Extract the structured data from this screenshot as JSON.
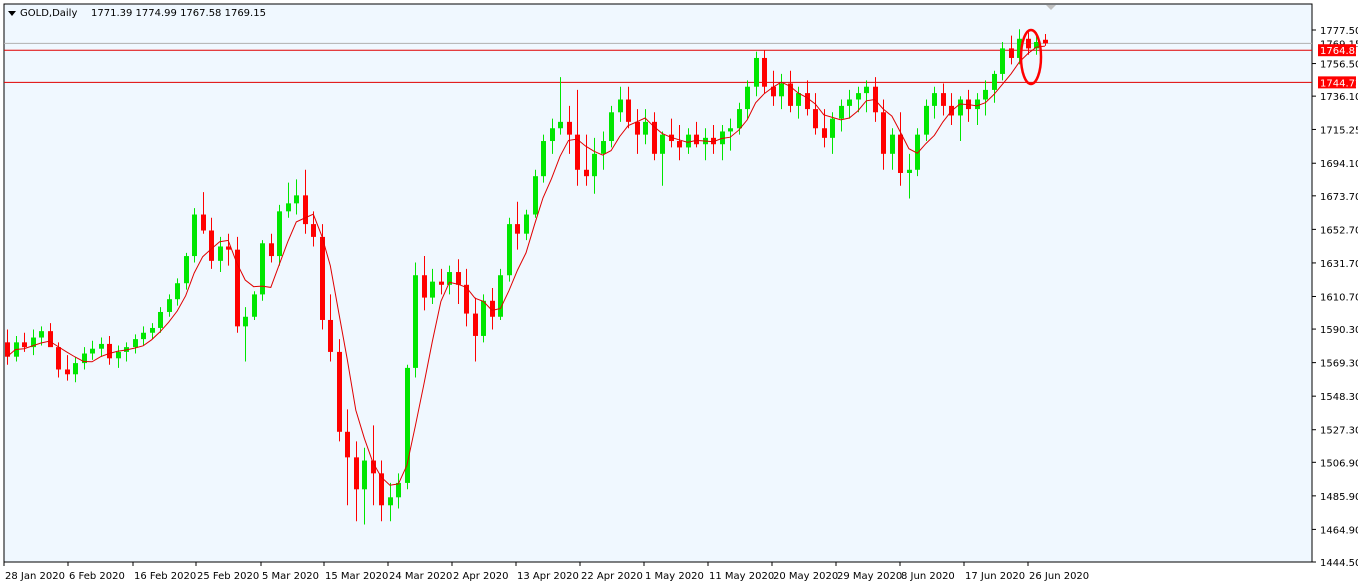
{
  "header": {
    "symbol": "GOLD,Daily",
    "ohlc": "1771.39 1774.99 1767.58 1769.15"
  },
  "colors": {
    "background": "#F0F8FF",
    "bull": "#00E600",
    "bear": "#FF0000",
    "ma": "#E00000",
    "hline": "#E00000",
    "tag": "#FF0000",
    "annotation": "#FF0000"
  },
  "price_tags": {
    "current": "1769.15",
    "line1": "1764.85",
    "line2": "1744.72"
  },
  "chart_data": {
    "type": "candlestick",
    "symbol": "GOLD",
    "timeframe": "Daily",
    "ylim": [
      1444.5,
      1786
    ],
    "y_ticks": [
      "1777.50",
      "1756.50",
      "1736.10",
      "1715.25",
      "1694.10",
      "1673.70",
      "1652.70",
      "1631.70",
      "1610.70",
      "1590.30",
      "1569.30",
      "1548.30",
      "1527.30",
      "1506.90",
      "1485.90",
      "1464.90",
      "1444.50"
    ],
    "x_ticks": [
      "28 Jan 2020",
      "6 Feb 2020",
      "16 Feb 2020",
      "25 Feb 2020",
      "5 Mar 2020",
      "15 Mar 2020",
      "24 Mar 2020",
      "2 Apr 2020",
      "13 Apr 2020",
      "22 Apr 2020",
      "1 May 2020",
      "11 May 2020",
      "20 May 2020",
      "29 May 2020",
      "8 Jun 2020",
      "17 Jun 2020",
      "26 Jun 2020"
    ],
    "horizontal_lines": [
      1764.85,
      1744.72
    ],
    "current_price": 1769.15,
    "grid": false,
    "indicator": "moving average",
    "ohlc": [
      [
        1582,
        1590,
        1568,
        1573
      ],
      [
        1573,
        1586,
        1570,
        1582
      ],
      [
        1582,
        1588,
        1576,
        1579
      ],
      [
        1579,
        1590,
        1574,
        1585
      ],
      [
        1585,
        1592,
        1580,
        1589
      ],
      [
        1589,
        1594,
        1581,
        1579
      ],
      [
        1579,
        1582,
        1560,
        1565
      ],
      [
        1565,
        1574,
        1558,
        1562
      ],
      [
        1562,
        1573,
        1557,
        1569
      ],
      [
        1569,
        1579,
        1565,
        1575
      ],
      [
        1575,
        1583,
        1571,
        1578
      ],
      [
        1578,
        1585,
        1573,
        1581
      ],
      [
        1581,
        1586,
        1568,
        1572
      ],
      [
        1572,
        1580,
        1566,
        1576
      ],
      [
        1576,
        1582,
        1570,
        1579
      ],
      [
        1579,
        1587,
        1575,
        1584
      ],
      [
        1584,
        1592,
        1580,
        1588
      ],
      [
        1588,
        1594,
        1584,
        1591
      ],
      [
        1591,
        1604,
        1588,
        1601
      ],
      [
        1601,
        1612,
        1598,
        1609
      ],
      [
        1609,
        1622,
        1605,
        1619
      ],
      [
        1619,
        1638,
        1615,
        1636
      ],
      [
        1636,
        1666,
        1632,
        1662
      ],
      [
        1662,
        1676,
        1650,
        1652
      ],
      [
        1652,
        1660,
        1628,
        1633
      ],
      [
        1633,
        1648,
        1626,
        1642
      ],
      [
        1642,
        1650,
        1630,
        1640
      ],
      [
        1640,
        1648,
        1588,
        1592
      ],
      [
        1592,
        1604,
        1570,
        1598
      ],
      [
        1598,
        1614,
        1596,
        1612
      ],
      [
        1612,
        1646,
        1608,
        1644
      ],
      [
        1644,
        1650,
        1632,
        1636
      ],
      [
        1636,
        1668,
        1630,
        1664
      ],
      [
        1664,
        1682,
        1660,
        1669
      ],
      [
        1669,
        1684,
        1662,
        1674
      ],
      [
        1674,
        1690,
        1650,
        1656
      ],
      [
        1656,
        1664,
        1642,
        1648
      ],
      [
        1648,
        1656,
        1590,
        1596
      ],
      [
        1596,
        1612,
        1570,
        1576
      ],
      [
        1576,
        1584,
        1520,
        1526
      ],
      [
        1526,
        1540,
        1480,
        1510
      ],
      [
        1510,
        1520,
        1470,
        1490
      ],
      [
        1490,
        1516,
        1468,
        1508
      ],
      [
        1508,
        1530,
        1480,
        1500
      ],
      [
        1500,
        1508,
        1470,
        1480
      ],
      [
        1480,
        1494,
        1470,
        1485
      ],
      [
        1485,
        1500,
        1478,
        1494
      ],
      [
        1494,
        1568,
        1490,
        1566
      ],
      [
        1566,
        1632,
        1560,
        1624
      ],
      [
        1624,
        1636,
        1602,
        1610
      ],
      [
        1610,
        1628,
        1606,
        1620
      ],
      [
        1620,
        1628,
        1612,
        1618
      ],
      [
        1618,
        1630,
        1612,
        1626
      ],
      [
        1626,
        1634,
        1606,
        1618
      ],
      [
        1618,
        1628,
        1592,
        1600
      ],
      [
        1600,
        1610,
        1570,
        1586
      ],
      [
        1586,
        1612,
        1582,
        1608
      ],
      [
        1608,
        1616,
        1590,
        1598
      ],
      [
        1598,
        1628,
        1596,
        1624
      ],
      [
        1624,
        1660,
        1620,
        1656
      ],
      [
        1656,
        1670,
        1640,
        1650
      ],
      [
        1650,
        1665,
        1646,
        1662
      ],
      [
        1662,
        1690,
        1660,
        1686
      ],
      [
        1686,
        1712,
        1682,
        1708
      ],
      [
        1708,
        1722,
        1700,
        1716
      ],
      [
        1716,
        1748,
        1712,
        1720
      ],
      [
        1720,
        1730,
        1700,
        1712
      ],
      [
        1712,
        1740,
        1680,
        1690
      ],
      [
        1690,
        1712,
        1680,
        1686
      ],
      [
        1686,
        1710,
        1675,
        1700
      ],
      [
        1700,
        1714,
        1690,
        1708
      ],
      [
        1708,
        1730,
        1704,
        1726
      ],
      [
        1726,
        1742,
        1720,
        1734
      ],
      [
        1734,
        1742,
        1716,
        1720
      ],
      [
        1720,
        1728,
        1700,
        1712
      ],
      [
        1712,
        1728,
        1706,
        1720
      ],
      [
        1720,
        1726,
        1696,
        1700
      ],
      [
        1700,
        1714,
        1680,
        1712
      ],
      [
        1712,
        1722,
        1704,
        1708
      ],
      [
        1708,
        1718,
        1696,
        1704
      ],
      [
        1704,
        1716,
        1700,
        1712
      ],
      [
        1712,
        1720,
        1704,
        1706
      ],
      [
        1706,
        1716,
        1696,
        1710
      ],
      [
        1710,
        1718,
        1700,
        1706
      ],
      [
        1706,
        1718,
        1696,
        1714
      ],
      [
        1714,
        1722,
        1702,
        1716
      ],
      [
        1716,
        1732,
        1712,
        1728
      ],
      [
        1728,
        1746,
        1722,
        1742
      ],
      [
        1742,
        1764,
        1736,
        1760
      ],
      [
        1760,
        1765,
        1738,
        1742
      ],
      [
        1742,
        1752,
        1730,
        1736
      ],
      [
        1736,
        1750,
        1728,
        1744
      ],
      [
        1744,
        1752,
        1726,
        1730
      ],
      [
        1730,
        1742,
        1722,
        1738
      ],
      [
        1738,
        1746,
        1724,
        1728
      ],
      [
        1728,
        1738,
        1712,
        1716
      ],
      [
        1716,
        1728,
        1704,
        1710
      ],
      [
        1710,
        1726,
        1700,
        1722
      ],
      [
        1722,
        1734,
        1714,
        1730
      ],
      [
        1730,
        1740,
        1722,
        1734
      ],
      [
        1734,
        1742,
        1726,
        1738
      ],
      [
        1738,
        1746,
        1726,
        1742
      ],
      [
        1742,
        1748,
        1720,
        1726
      ],
      [
        1726,
        1734,
        1690,
        1700
      ],
      [
        1700,
        1716,
        1690,
        1712
      ],
      [
        1712,
        1726,
        1680,
        1688
      ],
      [
        1688,
        1700,
        1672,
        1690
      ],
      [
        1690,
        1716,
        1686,
        1712
      ],
      [
        1712,
        1734,
        1708,
        1730
      ],
      [
        1730,
        1742,
        1722,
        1738
      ],
      [
        1738,
        1744,
        1724,
        1730
      ],
      [
        1730,
        1738,
        1718,
        1724
      ],
      [
        1724,
        1736,
        1708,
        1734
      ],
      [
        1734,
        1740,
        1720,
        1728
      ],
      [
        1728,
        1738,
        1718,
        1734
      ],
      [
        1734,
        1746,
        1724,
        1740
      ],
      [
        1740,
        1752,
        1732,
        1750
      ],
      [
        1750,
        1770,
        1746,
        1766
      ],
      [
        1766,
        1774,
        1756,
        1760
      ],
      [
        1760,
        1778,
        1756,
        1772
      ],
      [
        1772,
        1776,
        1762,
        1766
      ],
      [
        1766,
        1776,
        1762,
        1770
      ],
      [
        1771.39,
        1774.99,
        1767.58,
        1769.15
      ]
    ]
  }
}
